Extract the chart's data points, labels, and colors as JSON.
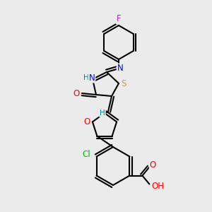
{
  "bg_color": "#ebebeb",
  "line_color": "#000000",
  "bond_width": 1.5,
  "atom_colors": {
    "F": "#ee00ee",
    "N": "#0000ff",
    "O": "#ff0000",
    "S": "#ccaa00",
    "Cl": "#00bb00",
    "H": "#008888",
    "C": "#000000"
  },
  "font_size": 8.5
}
